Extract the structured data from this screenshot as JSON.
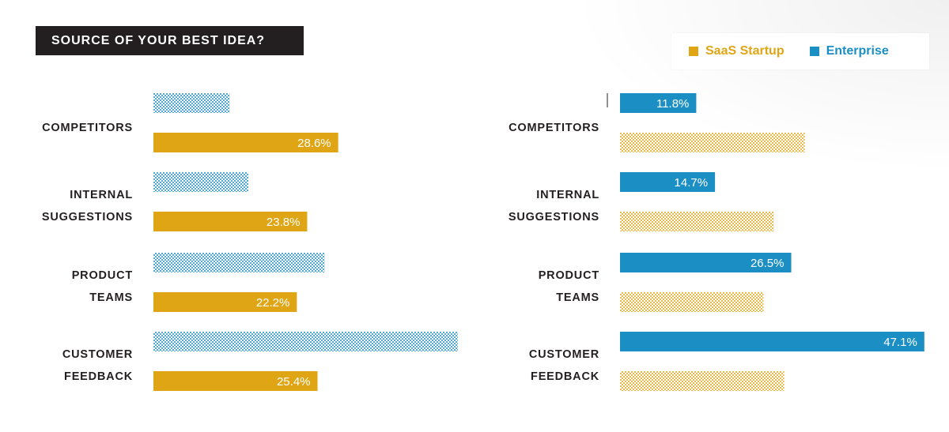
{
  "title": "SOURCE OF YOUR BEST IDEA?",
  "legend": {
    "saas": "SaaS Startup",
    "enterprise": "Enterprise"
  },
  "colors": {
    "saas": "#e0a514",
    "enterprise": "#1b8fc4",
    "title_bg": "#231f20"
  },
  "chart_data": [
    {
      "type": "bar",
      "orientation": "horizontal",
      "highlight": "SaaS Startup",
      "categories": [
        "COMPETITORS",
        "INTERNAL SUGGESTIONS",
        "PRODUCT TEAMS",
        "CUSTOMER FEEDBACK"
      ],
      "category_lines": [
        [
          "COMPETITORS"
        ],
        [
          "INTERNAL",
          "SUGGESTIONS"
        ],
        [
          "PRODUCT",
          "TEAMS"
        ],
        [
          "CUSTOMER",
          "FEEDBACK"
        ]
      ],
      "series": [
        {
          "name": "Enterprise",
          "values": [
            11.8,
            14.7,
            26.5,
            47.1
          ],
          "style": "dotted"
        },
        {
          "name": "SaaS Startup",
          "values": [
            28.6,
            23.8,
            22.2,
            25.4
          ],
          "style": "solid"
        }
      ],
      "labels": [
        "28.6%",
        "23.8%",
        "22.2%",
        "25.4%"
      ]
    },
    {
      "type": "bar",
      "orientation": "horizontal",
      "highlight": "Enterprise",
      "categories": [
        "COMPETITORS",
        "INTERNAL SUGGESTIONS",
        "PRODUCT TEAMS",
        "CUSTOMER FEEDBACK"
      ],
      "category_lines": [
        [
          "COMPETITORS"
        ],
        [
          "INTERNAL",
          "SUGGESTIONS"
        ],
        [
          "PRODUCT",
          "TEAMS"
        ],
        [
          "CUSTOMER",
          "FEEDBACK"
        ]
      ],
      "series": [
        {
          "name": "Enterprise",
          "values": [
            11.8,
            14.7,
            26.5,
            47.1
          ],
          "style": "solid"
        },
        {
          "name": "SaaS Startup",
          "values": [
            28.6,
            23.8,
            22.2,
            25.4
          ],
          "style": "dotted"
        }
      ],
      "labels": [
        "11.8%",
        "14.7%",
        "26.5%",
        "47.1%"
      ]
    }
  ]
}
